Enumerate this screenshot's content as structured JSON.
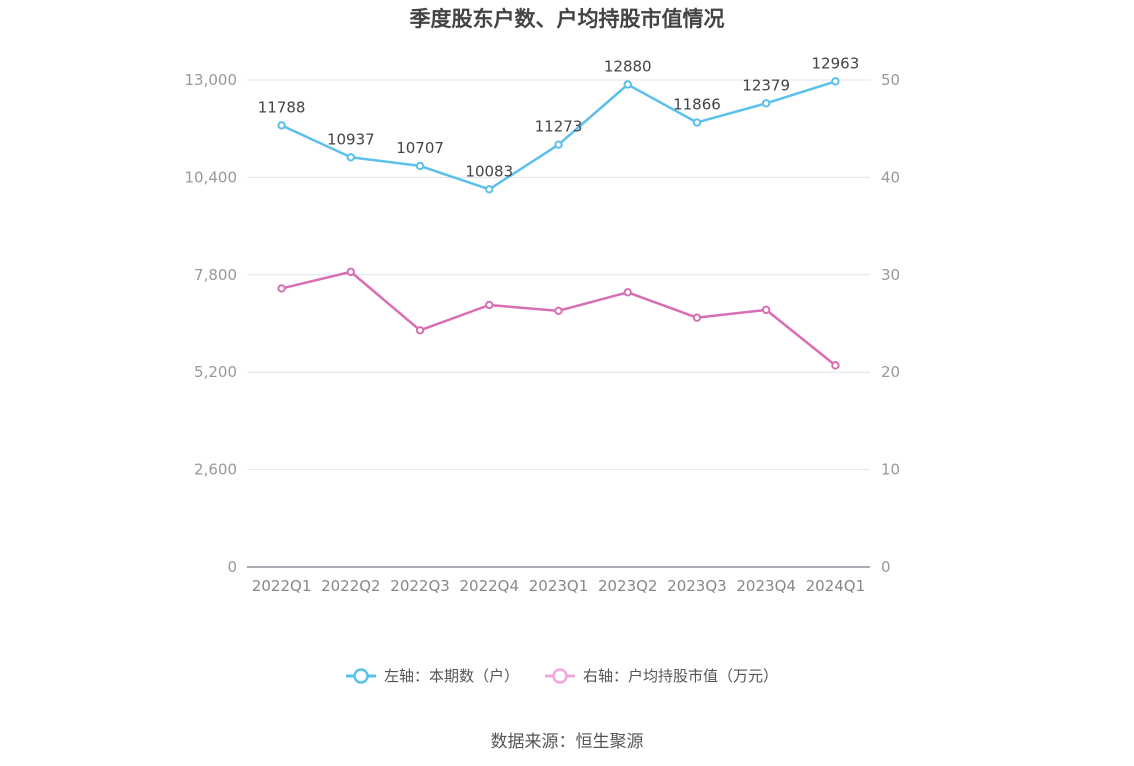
{
  "chart_data": {
    "type": "line",
    "title": "季度股东户数、户均持股市值情况",
    "categories": [
      "2022Q1",
      "2022Q2",
      "2022Q3",
      "2022Q4",
      "2023Q1",
      "2023Q2",
      "2023Q3",
      "2023Q4",
      "2024Q1"
    ],
    "y_left": {
      "ticks": [
        "0",
        "2,600",
        "5,200",
        "7,800",
        "10,400",
        "13,000"
      ],
      "range": [
        0,
        13000
      ]
    },
    "y_right": {
      "ticks": [
        "0",
        "10",
        "20",
        "30",
        "40",
        "50"
      ],
      "range": [
        0,
        50
      ]
    },
    "series": [
      {
        "name": "左轴：本期数（户）",
        "axis": "left",
        "color": "#5bc0eb",
        "values": [
          11788,
          10937,
          10707,
          10083,
          11273,
          12880,
          11866,
          12379,
          12963
        ],
        "labels": [
          "11788",
          "10937",
          "10707",
          "10083",
          "11273",
          "12880",
          "11866",
          "12379",
          "12963"
        ]
      },
      {
        "name": "右轴：户均持股市值（万元）",
        "axis": "right",
        "color": "#d86fb4",
        "values": [
          28.6,
          30.3,
          24.3,
          26.9,
          26.3,
          28.2,
          25.6,
          26.4,
          20.7
        ]
      }
    ],
    "legend_position": "bottom-center",
    "grid": true
  },
  "source": "数据来源：恒生聚源"
}
